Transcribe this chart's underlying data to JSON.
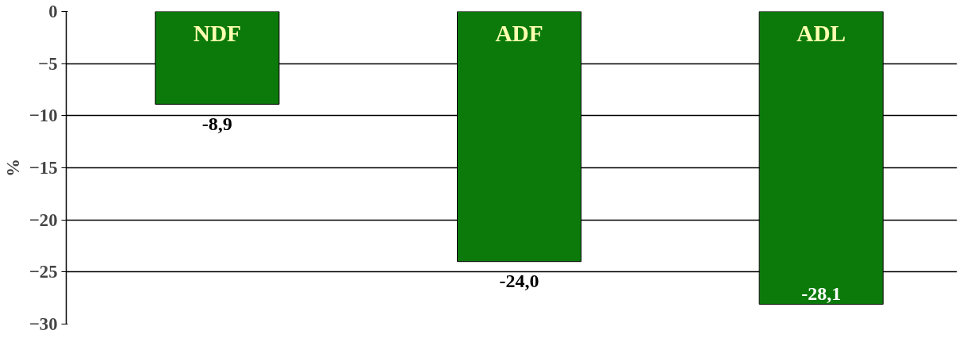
{
  "chart_data": {
    "type": "bar",
    "ylabel": "%",
    "categories": [
      "NDF",
      "ADF",
      "ADL"
    ],
    "values": [
      -8.9,
      -24.0,
      -28.1
    ],
    "value_labels": [
      "-8,9",
      "-24,0",
      "-28,1"
    ],
    "color": "#0b7a0b",
    "ylim": [
      -30,
      0
    ],
    "yticks": [
      -30,
      -25,
      -20,
      -15,
      -10,
      -5,
      0
    ],
    "grid": "y"
  }
}
